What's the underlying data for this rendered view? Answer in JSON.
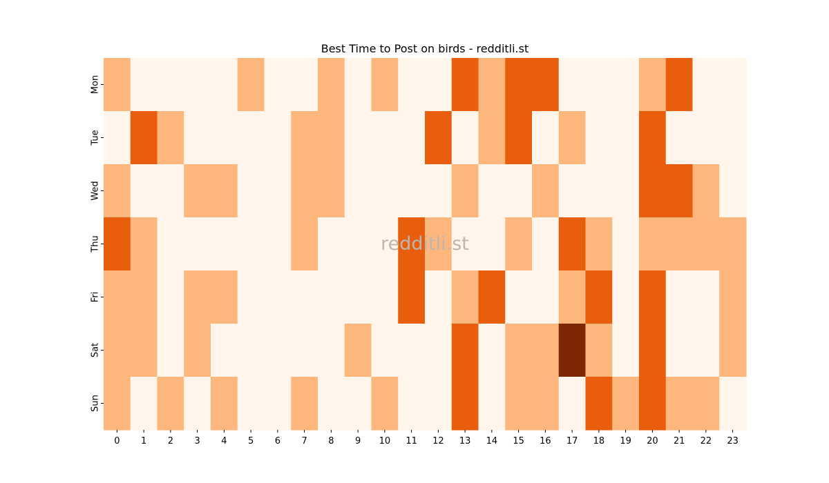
{
  "chart_data": {
    "type": "heatmap",
    "title": "Best Time to Post on birds - redditli.st",
    "xlabel": "",
    "ylabel": "",
    "x_categories": [
      "0",
      "1",
      "2",
      "3",
      "4",
      "5",
      "6",
      "7",
      "8",
      "9",
      "10",
      "11",
      "12",
      "13",
      "14",
      "15",
      "16",
      "17",
      "18",
      "19",
      "20",
      "21",
      "22",
      "23"
    ],
    "y_categories": [
      "Mon",
      "Tue",
      "Wed",
      "Thu",
      "Fri",
      "Sat",
      "Sun"
    ],
    "values": [
      [
        1,
        0,
        0,
        0,
        0,
        1,
        0,
        0,
        1,
        0,
        1,
        0,
        0,
        2,
        1,
        2,
        2,
        0,
        0,
        0,
        1,
        2,
        0,
        0
      ],
      [
        0,
        2,
        1,
        0,
        0,
        0,
        0,
        1,
        1,
        0,
        0,
        0,
        2,
        0,
        1,
        2,
        0,
        1,
        0,
        0,
        2,
        0,
        0,
        0
      ],
      [
        1,
        0,
        0,
        1,
        1,
        0,
        0,
        1,
        1,
        0,
        0,
        0,
        0,
        1,
        0,
        0,
        1,
        0,
        0,
        0,
        2,
        2,
        1,
        0
      ],
      [
        2,
        1,
        0,
        0,
        0,
        0,
        0,
        1,
        0,
        0,
        0,
        2,
        1,
        0,
        0,
        1,
        0,
        2,
        1,
        0,
        1,
        1,
        1,
        1
      ],
      [
        1,
        1,
        0,
        1,
        1,
        0,
        0,
        0,
        0,
        0,
        0,
        2,
        0,
        1,
        2,
        0,
        0,
        1,
        2,
        0,
        2,
        0,
        0,
        1
      ],
      [
        1,
        1,
        0,
        1,
        0,
        0,
        0,
        0,
        0,
        1,
        0,
        0,
        0,
        2,
        0,
        1,
        1,
        3,
        1,
        0,
        2,
        0,
        0,
        1
      ],
      [
        1,
        0,
        1,
        0,
        1,
        0,
        0,
        1,
        0,
        0,
        1,
        0,
        0,
        2,
        0,
        1,
        1,
        0,
        2,
        1,
        2,
        1,
        1,
        0
      ]
    ],
    "value_range": [
      0,
      3
    ],
    "colormap": "Oranges",
    "level_colors": [
      "#fff5eb",
      "#fdb77c",
      "#e95e0d",
      "#7f2704"
    ],
    "grid": false,
    "colorbar": false,
    "watermark": "redditli.st"
  }
}
